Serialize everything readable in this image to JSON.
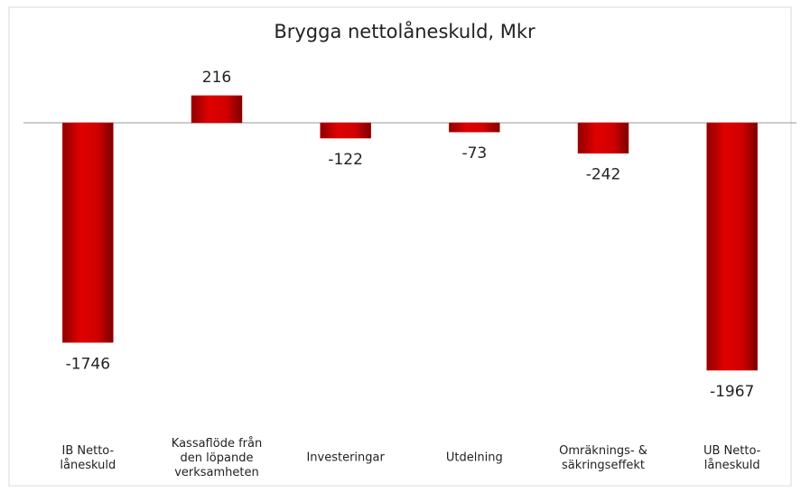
{
  "chart_data": {
    "type": "bar",
    "title": "Brygga nettolåneskuld, Mkr",
    "categories": [
      "IB Netto-\nlåneskuld",
      "Kassaflöde från\nden löpande\nverksamheten",
      "Investeringar",
      "Utdelning",
      "Omräknings- &\nsäkringseffekt",
      "UB Netto-\nlåneskuld"
    ],
    "values": [
      -1746,
      216,
      -122,
      -73,
      -242,
      -1967
    ],
    "color": "#d40000",
    "ylim": [
      -2200,
      550
    ]
  }
}
